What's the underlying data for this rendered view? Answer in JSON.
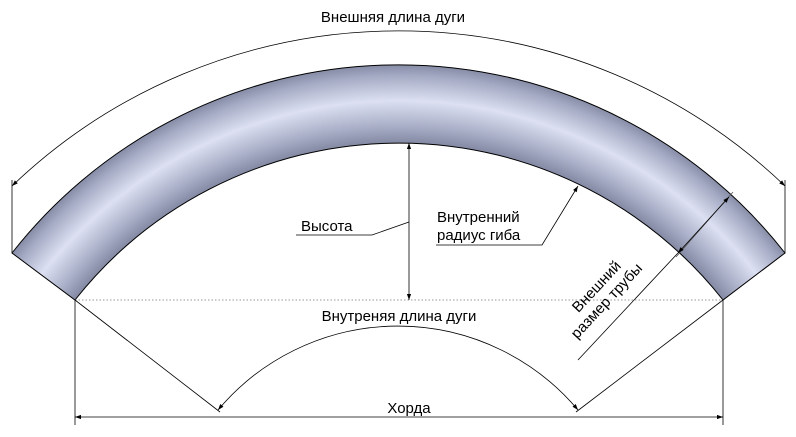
{
  "labels": {
    "outer_arc_length": "Внешняя длина дуги",
    "height": "Высота",
    "inner_radius_line1": "Внутренний",
    "inner_radius_line2": "радиус гиба",
    "inner_arc_length": "Внутреняя длина дуги",
    "outer_size_line1": "Внешний",
    "outer_size_line2": "размер трубы",
    "chord": "Хорда"
  },
  "colors": {
    "pipe_dark": "#7f859f",
    "pipe_light": "#dce0f2",
    "line": "#000000"
  }
}
